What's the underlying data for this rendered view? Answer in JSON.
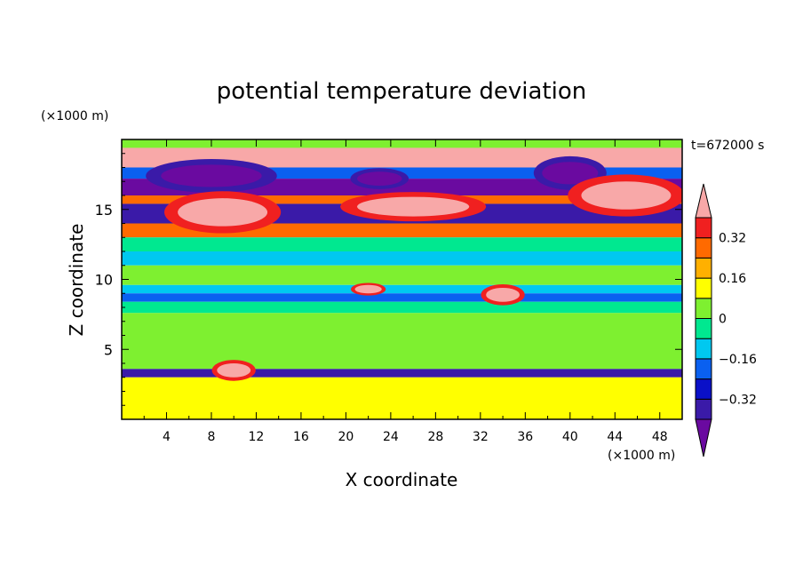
{
  "chart_data": {
    "type": "heatmap",
    "title": "potential temperature deviation",
    "xlabel": "X coordinate",
    "ylabel": "Z coordinate",
    "x_unit_label": "(×1000 m)",
    "y_unit_label": "(×1000 m)",
    "time_label": "t=672000 s",
    "xlim": [
      0,
      50
    ],
    "ylim": [
      0,
      20
    ],
    "x_ticks": [
      4,
      8,
      12,
      16,
      20,
      24,
      28,
      32,
      36,
      40,
      44,
      48
    ],
    "y_ticks": [
      5,
      10,
      15
    ],
    "colorbar": {
      "levels": [
        -0.48,
        -0.4,
        -0.32,
        -0.24,
        -0.16,
        -0.08,
        0,
        0.08,
        0.16,
        0.24,
        0.32,
        0.4,
        0.48
      ],
      "colors": [
        "#6a0aa0",
        "#3a1aa8",
        "#0a10c8",
        "#0a60f0",
        "#00c8f0",
        "#00e890",
        "#7ef030",
        "#ffff00",
        "#ffb000",
        "#ff6a00",
        "#f02020",
        "#f8a8a8"
      ],
      "labels": [
        {
          "value": -0.32,
          "text": "−0.32"
        },
        {
          "value": -0.16,
          "text": "−0.16"
        },
        {
          "value": 0,
          "text": "0"
        },
        {
          "value": 0.16,
          "text": "0.16"
        },
        {
          "value": 0.32,
          "text": "0.32"
        }
      ]
    },
    "field_bands": [
      {
        "z": [
          19.4,
          20.0
        ],
        "value": 0.02
      },
      {
        "z": [
          18.0,
          19.4
        ],
        "value": 0.44
      },
      {
        "z": [
          17.2,
          18.0
        ],
        "value": -0.2
      },
      {
        "z": [
          16.0,
          17.2
        ],
        "value": -0.44
      },
      {
        "z": [
          15.4,
          16.0
        ],
        "value": 0.3
      },
      {
        "z": [
          14.0,
          15.4
        ],
        "value": -0.4
      },
      {
        "z": [
          13.0,
          14.0
        ],
        "value": 0.3
      },
      {
        "z": [
          12.0,
          13.0
        ],
        "value": -0.04
      },
      {
        "z": [
          11.0,
          12.0
        ],
        "value": -0.1
      },
      {
        "z": [
          9.6,
          11.0
        ],
        "value": 0.02
      },
      {
        "z": [
          9.0,
          9.6
        ],
        "value": -0.12
      },
      {
        "z": [
          8.4,
          9.0
        ],
        "value": -0.22
      },
      {
        "z": [
          7.6,
          8.4
        ],
        "value": -0.05
      },
      {
        "z": [
          3.6,
          7.6
        ],
        "value": 0.02
      },
      {
        "z": [
          3.0,
          3.6
        ],
        "value": -0.36
      },
      {
        "z": [
          0.0,
          3.0
        ],
        "value": 0.1
      }
    ],
    "features": [
      {
        "x": 8,
        "z": 17.4,
        "rx": 4.5,
        "rz": 0.8,
        "value": -0.46
      },
      {
        "x": 23,
        "z": 17.2,
        "rx": 2.0,
        "rz": 0.5,
        "value": -0.46
      },
      {
        "x": 40,
        "z": 17.6,
        "rx": 2.5,
        "rz": 0.8,
        "value": -0.46
      },
      {
        "x": 9,
        "z": 14.8,
        "rx": 4.0,
        "rz": 1.0,
        "value": 0.46
      },
      {
        "x": 26,
        "z": 15.2,
        "rx": 5.0,
        "rz": 0.7,
        "value": 0.46
      },
      {
        "x": 45,
        "z": 16.0,
        "rx": 4.0,
        "rz": 1.0,
        "value": 0.46
      },
      {
        "x": 34,
        "z": 8.9,
        "rx": 1.5,
        "rz": 0.5,
        "value": 0.46
      },
      {
        "x": 22,
        "z": 9.3,
        "rx": 1.2,
        "rz": 0.3,
        "value": 0.46
      },
      {
        "x": 10,
        "z": 3.5,
        "rx": 1.5,
        "rz": 0.5,
        "value": 0.46
      }
    ]
  }
}
